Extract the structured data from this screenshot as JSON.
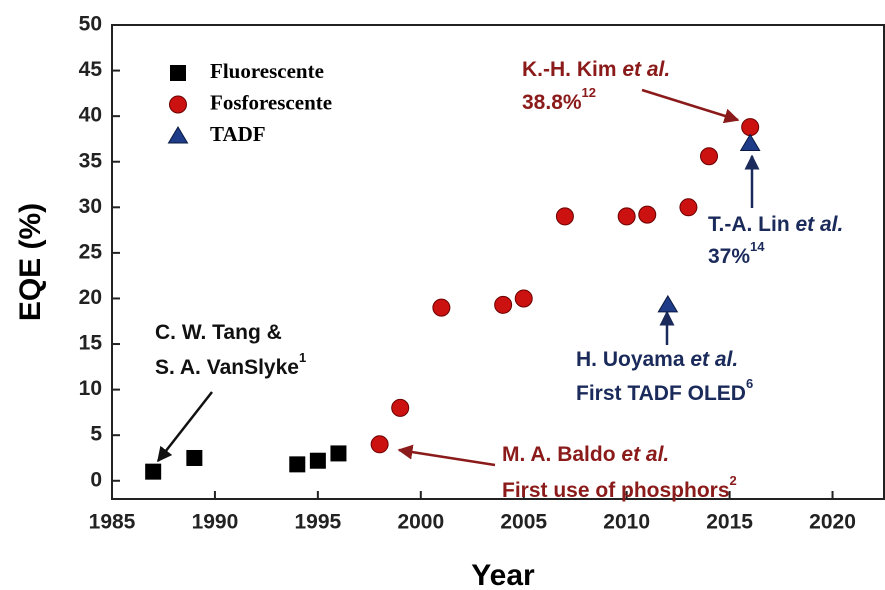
{
  "chart_data": {
    "type": "scatter",
    "xlabel": "Year",
    "ylabel": "EQE (%)",
    "xlim": [
      1985,
      2022.5
    ],
    "ylim": [
      -2,
      50
    ],
    "xticks": [
      1985,
      1990,
      1995,
      2000,
      2005,
      2010,
      2015,
      2020
    ],
    "yticks": [
      0,
      5,
      10,
      15,
      20,
      25,
      30,
      35,
      40,
      45,
      50
    ],
    "series": [
      {
        "name": "Fluorescente",
        "color": "#000000",
        "marker": "square",
        "x": [
          1987,
          1989,
          1994,
          1995,
          1996
        ],
        "values": [
          1.0,
          2.5,
          1.8,
          2.2,
          3.0
        ]
      },
      {
        "name": "Fosforescente",
        "color": "#cc1111",
        "marker": "circle",
        "x": [
          1998,
          1999,
          2001,
          2004,
          2005,
          2007,
          2010,
          2011,
          2013,
          2014,
          2016
        ],
        "values": [
          4.0,
          8.0,
          19.0,
          19.3,
          20.0,
          29.0,
          29.0,
          29.2,
          30.0,
          35.6,
          38.8
        ]
      },
      {
        "name": "TADF",
        "color": "#1f3c88",
        "marker": "triangle",
        "x": [
          2012,
          2016
        ],
        "values": [
          19.3,
          37.0
        ]
      }
    ],
    "annotations": [
      {
        "color": "#111111",
        "lines": [
          [
            {
              "text": "C. W. Tang &"
            }
          ],
          [
            {
              "text": "S. A. VanSlyke"
            },
            {
              "text": "1",
              "sup": true
            }
          ]
        ]
      },
      {
        "color": "#8b1a1a",
        "lines": [
          [
            {
              "text": "M. A. Baldo "
            },
            {
              "text": "et al.",
              "italic": true
            }
          ],
          [
            {
              "text": "First use of phosphors"
            },
            {
              "text": "2",
              "sup": true
            }
          ]
        ]
      },
      {
        "color": "#1a2a5a",
        "lines": [
          [
            {
              "text": "H. Uoyama "
            },
            {
              "text": "et al.",
              "italic": true
            }
          ],
          [
            {
              "text": "First TADF OLED"
            },
            {
              "text": "6",
              "sup": true
            }
          ]
        ]
      },
      {
        "color": "#1a2a5a",
        "lines": [
          [
            {
              "text": "T.-A. Lin "
            },
            {
              "text": "et al.",
              "italic": true
            }
          ],
          [
            {
              "text": "37%"
            },
            {
              "text": "14",
              "sup": true
            }
          ]
        ]
      },
      {
        "color": "#8b1a1a",
        "lines": [
          [
            {
              "text": "K.-H. Kim "
            },
            {
              "text": "et al.",
              "italic": true
            }
          ],
          [
            {
              "text": "38.8%"
            },
            {
              "text": "12",
              "sup": true
            }
          ]
        ]
      }
    ]
  }
}
